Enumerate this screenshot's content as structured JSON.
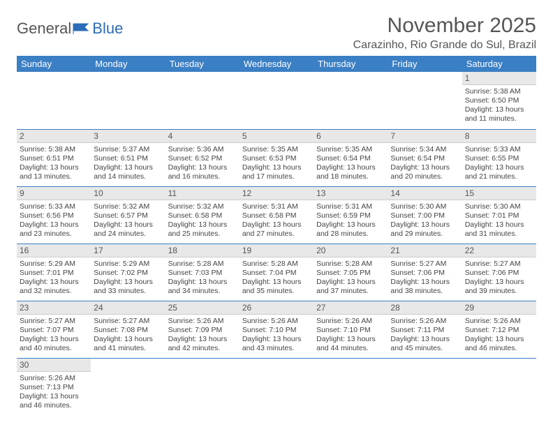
{
  "brand": {
    "part1": "General",
    "part2": "Blue",
    "flag_color": "#2b6db8"
  },
  "title": "November 2025",
  "location": "Carazinho, Rio Grande do Sul, Brazil",
  "colors": {
    "header_bg": "#3b7fc4",
    "header_text": "#ffffff",
    "daynum_bg": "#e8e8e8",
    "border": "#3b7fc4",
    "text": "#444444"
  },
  "weekdays": [
    "Sunday",
    "Monday",
    "Tuesday",
    "Wednesday",
    "Thursday",
    "Friday",
    "Saturday"
  ],
  "weeks": [
    [
      null,
      null,
      null,
      null,
      null,
      null,
      {
        "n": "1",
        "sr": "Sunrise: 5:38 AM",
        "ss": "Sunset: 6:50 PM",
        "d1": "Daylight: 13 hours",
        "d2": "and 11 minutes."
      }
    ],
    [
      {
        "n": "2",
        "sr": "Sunrise: 5:38 AM",
        "ss": "Sunset: 6:51 PM",
        "d1": "Daylight: 13 hours",
        "d2": "and 13 minutes."
      },
      {
        "n": "3",
        "sr": "Sunrise: 5:37 AM",
        "ss": "Sunset: 6:51 PM",
        "d1": "Daylight: 13 hours",
        "d2": "and 14 minutes."
      },
      {
        "n": "4",
        "sr": "Sunrise: 5:36 AM",
        "ss": "Sunset: 6:52 PM",
        "d1": "Daylight: 13 hours",
        "d2": "and 16 minutes."
      },
      {
        "n": "5",
        "sr": "Sunrise: 5:35 AM",
        "ss": "Sunset: 6:53 PM",
        "d1": "Daylight: 13 hours",
        "d2": "and 17 minutes."
      },
      {
        "n": "6",
        "sr": "Sunrise: 5:35 AM",
        "ss": "Sunset: 6:54 PM",
        "d1": "Daylight: 13 hours",
        "d2": "and 18 minutes."
      },
      {
        "n": "7",
        "sr": "Sunrise: 5:34 AM",
        "ss": "Sunset: 6:54 PM",
        "d1": "Daylight: 13 hours",
        "d2": "and 20 minutes."
      },
      {
        "n": "8",
        "sr": "Sunrise: 5:33 AM",
        "ss": "Sunset: 6:55 PM",
        "d1": "Daylight: 13 hours",
        "d2": "and 21 minutes."
      }
    ],
    [
      {
        "n": "9",
        "sr": "Sunrise: 5:33 AM",
        "ss": "Sunset: 6:56 PM",
        "d1": "Daylight: 13 hours",
        "d2": "and 23 minutes."
      },
      {
        "n": "10",
        "sr": "Sunrise: 5:32 AM",
        "ss": "Sunset: 6:57 PM",
        "d1": "Daylight: 13 hours",
        "d2": "and 24 minutes."
      },
      {
        "n": "11",
        "sr": "Sunrise: 5:32 AM",
        "ss": "Sunset: 6:58 PM",
        "d1": "Daylight: 13 hours",
        "d2": "and 25 minutes."
      },
      {
        "n": "12",
        "sr": "Sunrise: 5:31 AM",
        "ss": "Sunset: 6:58 PM",
        "d1": "Daylight: 13 hours",
        "d2": "and 27 minutes."
      },
      {
        "n": "13",
        "sr": "Sunrise: 5:31 AM",
        "ss": "Sunset: 6:59 PM",
        "d1": "Daylight: 13 hours",
        "d2": "and 28 minutes."
      },
      {
        "n": "14",
        "sr": "Sunrise: 5:30 AM",
        "ss": "Sunset: 7:00 PM",
        "d1": "Daylight: 13 hours",
        "d2": "and 29 minutes."
      },
      {
        "n": "15",
        "sr": "Sunrise: 5:30 AM",
        "ss": "Sunset: 7:01 PM",
        "d1": "Daylight: 13 hours",
        "d2": "and 31 minutes."
      }
    ],
    [
      {
        "n": "16",
        "sr": "Sunrise: 5:29 AM",
        "ss": "Sunset: 7:01 PM",
        "d1": "Daylight: 13 hours",
        "d2": "and 32 minutes."
      },
      {
        "n": "17",
        "sr": "Sunrise: 5:29 AM",
        "ss": "Sunset: 7:02 PM",
        "d1": "Daylight: 13 hours",
        "d2": "and 33 minutes."
      },
      {
        "n": "18",
        "sr": "Sunrise: 5:28 AM",
        "ss": "Sunset: 7:03 PM",
        "d1": "Daylight: 13 hours",
        "d2": "and 34 minutes."
      },
      {
        "n": "19",
        "sr": "Sunrise: 5:28 AM",
        "ss": "Sunset: 7:04 PM",
        "d1": "Daylight: 13 hours",
        "d2": "and 35 minutes."
      },
      {
        "n": "20",
        "sr": "Sunrise: 5:28 AM",
        "ss": "Sunset: 7:05 PM",
        "d1": "Daylight: 13 hours",
        "d2": "and 37 minutes."
      },
      {
        "n": "21",
        "sr": "Sunrise: 5:27 AM",
        "ss": "Sunset: 7:06 PM",
        "d1": "Daylight: 13 hours",
        "d2": "and 38 minutes."
      },
      {
        "n": "22",
        "sr": "Sunrise: 5:27 AM",
        "ss": "Sunset: 7:06 PM",
        "d1": "Daylight: 13 hours",
        "d2": "and 39 minutes."
      }
    ],
    [
      {
        "n": "23",
        "sr": "Sunrise: 5:27 AM",
        "ss": "Sunset: 7:07 PM",
        "d1": "Daylight: 13 hours",
        "d2": "and 40 minutes."
      },
      {
        "n": "24",
        "sr": "Sunrise: 5:27 AM",
        "ss": "Sunset: 7:08 PM",
        "d1": "Daylight: 13 hours",
        "d2": "and 41 minutes."
      },
      {
        "n": "25",
        "sr": "Sunrise: 5:26 AM",
        "ss": "Sunset: 7:09 PM",
        "d1": "Daylight: 13 hours",
        "d2": "and 42 minutes."
      },
      {
        "n": "26",
        "sr": "Sunrise: 5:26 AM",
        "ss": "Sunset: 7:10 PM",
        "d1": "Daylight: 13 hours",
        "d2": "and 43 minutes."
      },
      {
        "n": "27",
        "sr": "Sunrise: 5:26 AM",
        "ss": "Sunset: 7:10 PM",
        "d1": "Daylight: 13 hours",
        "d2": "and 44 minutes."
      },
      {
        "n": "28",
        "sr": "Sunrise: 5:26 AM",
        "ss": "Sunset: 7:11 PM",
        "d1": "Daylight: 13 hours",
        "d2": "and 45 minutes."
      },
      {
        "n": "29",
        "sr": "Sunrise: 5:26 AM",
        "ss": "Sunset: 7:12 PM",
        "d1": "Daylight: 13 hours",
        "d2": "and 46 minutes."
      }
    ],
    [
      {
        "n": "30",
        "sr": "Sunrise: 5:26 AM",
        "ss": "Sunset: 7:13 PM",
        "d1": "Daylight: 13 hours",
        "d2": "and 46 minutes."
      },
      null,
      null,
      null,
      null,
      null,
      null
    ]
  ]
}
